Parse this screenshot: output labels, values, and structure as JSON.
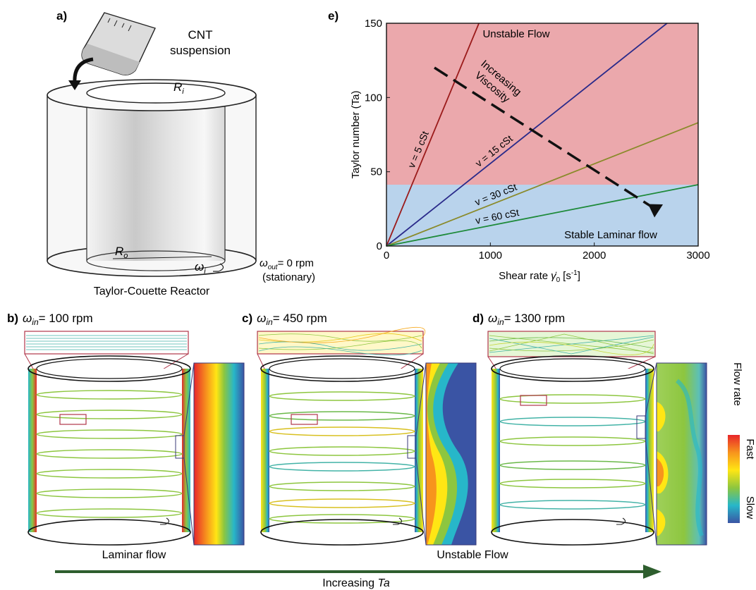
{
  "panel_a": {
    "label": "a)",
    "suspension_label_1": "CNT",
    "suspension_label_2": "suspension",
    "inner_radius": "R",
    "inner_radius_sub": "i",
    "outer_radius": "R",
    "outer_radius_sub": "o",
    "inner_omega": "ω",
    "inner_omega_sub": "i",
    "outer_omega": "ω",
    "outer_omega_sub": "out",
    "outer_omega_value": "= 0 rpm",
    "outer_omega_note": "(stationary)",
    "caption": "Taylor-Couette Reactor"
  },
  "panels_sim": [
    {
      "label": "b)",
      "omega": "ω",
      "omega_sub": "in",
      "speed": "= 100 rpm"
    },
    {
      "label": "c)",
      "omega": "ω",
      "omega_sub": "in",
      "speed": "= 450 rpm"
    },
    {
      "label": "d)",
      "omega": "ω",
      "omega_sub": "in",
      "speed": "= 1300 rpm"
    }
  ],
  "legend": {
    "title": "Flow rate",
    "fast": "Fast",
    "slow": "Slow",
    "gradient_colors": [
      "#e8262a",
      "#f7941d",
      "#ffe614",
      "#8dc63f",
      "#27b7c9",
      "#3a54a4"
    ]
  },
  "bottom": {
    "laminar": "Laminar flow",
    "unstable": "Unstable Flow",
    "arrow_label": "Increasing",
    "arrow_label_em": "Ta",
    "arrow_color": "#2e5e2e"
  },
  "chart_data": {
    "type": "line",
    "panel_label": "e)",
    "xlabel": "Shear rate",
    "xlabel_symbol": "γ̇",
    "xlabel_sub": "0",
    "xlabel_unit": "[s",
    "xlabel_unit_sup": "-1",
    "xlabel_unit_end": "]",
    "ylabel": "Taylor number (Ta)",
    "xlim": [
      0,
      3000
    ],
    "ylim": [
      0,
      150
    ],
    "x_ticks": [
      "0",
      "1000",
      "2000",
      "3000"
    ],
    "y_ticks": [
      "0",
      "50",
      "100",
      "150"
    ],
    "critical_ta": 41.3,
    "regions": [
      {
        "label": "Unstable Flow",
        "color": "#eba8ac"
      },
      {
        "label": "Stable Laminar flow",
        "color": "#b9d3ec"
      }
    ],
    "series": [
      {
        "name": "v = 5 cSt",
        "color": "#9b1b1b",
        "x": [
          0,
          890
        ],
        "y": [
          0,
          150
        ]
      },
      {
        "name": "v = 15 cSt",
        "color": "#2a2a8a",
        "x": [
          0,
          2700
        ],
        "y": [
          0,
          150
        ]
      },
      {
        "name": "v = 30 cSt",
        "color": "#8a8a2a",
        "x": [
          0,
          3000
        ],
        "y": [
          0,
          83
        ]
      },
      {
        "name": "v = 60 cSt",
        "color": "#1e8a3a",
        "x": [
          0,
          3000
        ],
        "y": [
          0,
          41.3
        ]
      }
    ],
    "annotation": {
      "line1": "Increasing",
      "line2": "Viscosity"
    }
  }
}
